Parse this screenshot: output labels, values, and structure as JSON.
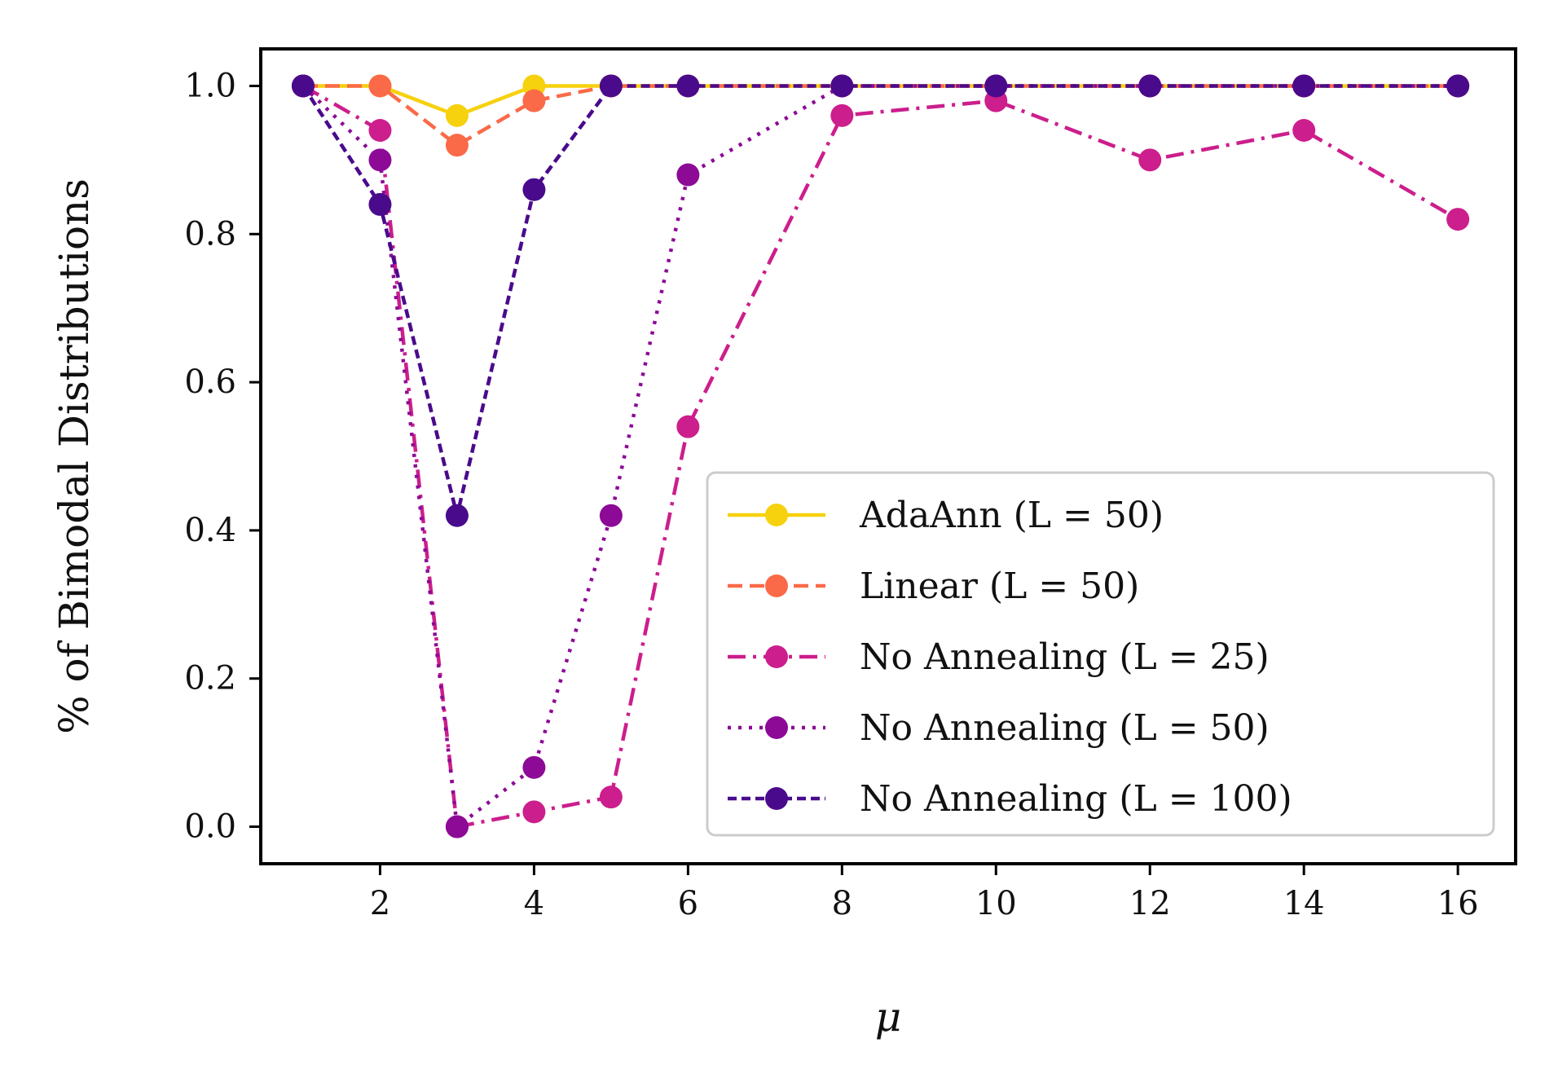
{
  "chart_data": {
    "type": "line",
    "title": "",
    "xlabel": "μ",
    "ylabel": "% of Bimodal Distributions",
    "xlim": [
      0.45,
      16.75
    ],
    "ylim": [
      -0.05,
      1.05
    ],
    "xticks": [
      2,
      4,
      6,
      8,
      10,
      12,
      14,
      16
    ],
    "xtick_labels": [
      "2",
      "4",
      "6",
      "8",
      "10",
      "12",
      "14",
      "16"
    ],
    "yticks": [
      0.0,
      0.2,
      0.4,
      0.6,
      0.8,
      1.0
    ],
    "ytick_labels": [
      "0.0",
      "0.2",
      "0.4",
      "0.6",
      "0.8",
      "1.0"
    ],
    "grid": false,
    "legend_position": "lower-right",
    "x": [
      1,
      2,
      3,
      4,
      5,
      6,
      8,
      10,
      12,
      14,
      16
    ],
    "series": [
      {
        "name": "AdaAnn (L = 50)",
        "color": "#f6d10d",
        "linestyle": "solid",
        "values": [
          1.0,
          1.0,
          0.96,
          1.0,
          1.0,
          1.0,
          1.0,
          1.0,
          1.0,
          1.0,
          1.0
        ]
      },
      {
        "name": "Linear (L = 50)",
        "color": "#fb6a48",
        "linestyle": "dashed",
        "values": [
          1.0,
          1.0,
          0.92,
          0.98,
          1.0,
          1.0,
          1.0,
          1.0,
          1.0,
          1.0,
          1.0
        ]
      },
      {
        "name": "No Annealing (L = 25)",
        "color": "#cc1e8c",
        "linestyle": "dashdot",
        "values": [
          1.0,
          0.94,
          0.0,
          0.02,
          0.04,
          0.54,
          0.96,
          0.98,
          0.9,
          0.94,
          0.82
        ]
      },
      {
        "name": "No Annealing (L = 50)",
        "color": "#8c0a96",
        "linestyle": "dotted",
        "values": [
          1.0,
          0.9,
          0.0,
          0.08,
          0.42,
          0.88,
          1.0,
          1.0,
          1.0,
          1.0,
          1.0
        ]
      },
      {
        "name": "No Annealing (L = 100)",
        "color": "#4a0a8c",
        "linestyle": "dashed-fine",
        "values": [
          1.0,
          0.84,
          0.42,
          0.86,
          1.0,
          1.0,
          1.0,
          1.0,
          1.0,
          1.0,
          1.0
        ]
      }
    ]
  }
}
